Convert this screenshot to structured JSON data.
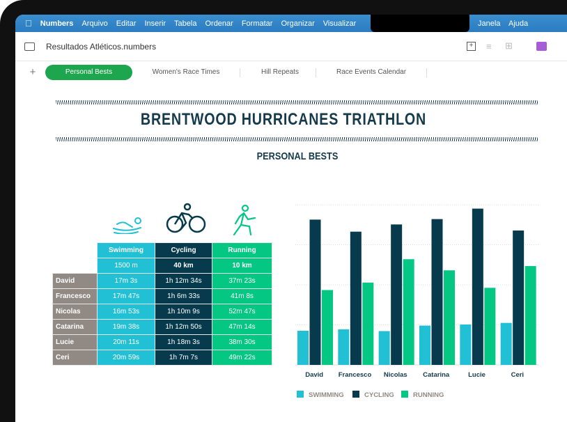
{
  "menubar": {
    "app": "Numbers",
    "items": [
      "Arquivo",
      "Editar",
      "Inserir",
      "Tabela",
      "Ordenar",
      "Formatar",
      "Organizar",
      "Visualizar"
    ],
    "right": [
      "Janela",
      "Ajuda"
    ]
  },
  "toolbar": {
    "title": "Resultados Atléticos.numbers"
  },
  "tabs": [
    "Personal Bests",
    "Women's Race Times",
    "Hill Repeats",
    "Race Events Calendar"
  ],
  "sheet": {
    "title": "BRENTWOOD HURRICANES TRIATHLON",
    "subtitle": "PERSONAL BESTS"
  },
  "table": {
    "headers": [
      "Swimming",
      "Cycling",
      "Running"
    ],
    "distances": [
      "1500 m",
      "40 km",
      "10 km"
    ],
    "rows": [
      {
        "name": "David",
        "values": [
          "17m 3s",
          "1h 12m 34s",
          "37m 23s"
        ]
      },
      {
        "name": "Francesco",
        "values": [
          "17m 47s",
          "1h 6m 33s",
          "41m 8s"
        ]
      },
      {
        "name": "Nicolas",
        "values": [
          "16m 53s",
          "1h 10m 9s",
          "52m 47s"
        ]
      },
      {
        "name": "Catarina",
        "values": [
          "19m 38s",
          "1h 12m 50s",
          "47m 14s"
        ]
      },
      {
        "name": "Lucie",
        "values": [
          "20m 11s",
          "1h 18m 3s",
          "38m 30s"
        ]
      },
      {
        "name": "Ceri",
        "values": [
          "20m 59s",
          "1h 7m 7s",
          "49m 22s"
        ]
      }
    ]
  },
  "colors": {
    "swimming": "#22c0d4",
    "cycling": "#063a4c",
    "running": "#03c783",
    "names": "#908984",
    "tab_active": "#1ea64e",
    "menubar": "#2e82c6"
  },
  "chart_data": {
    "type": "bar",
    "categories": [
      "David",
      "Francesco",
      "Nicolas",
      "Catarina",
      "Lucie",
      "Ceri"
    ],
    "series": [
      {
        "name": "SWIMMING",
        "values": [
          17.05,
          17.78,
          16.88,
          19.63,
          20.18,
          20.98
        ]
      },
      {
        "name": "CYCLING",
        "values": [
          72.57,
          66.55,
          70.15,
          72.83,
          78.05,
          67.12
        ]
      },
      {
        "name": "RUNNING",
        "values": [
          37.38,
          41.13,
          52.78,
          47.23,
          38.5,
          49.37
        ]
      }
    ],
    "ylim": [
      0,
      80
    ],
    "grid": true,
    "legend": "bottom"
  }
}
